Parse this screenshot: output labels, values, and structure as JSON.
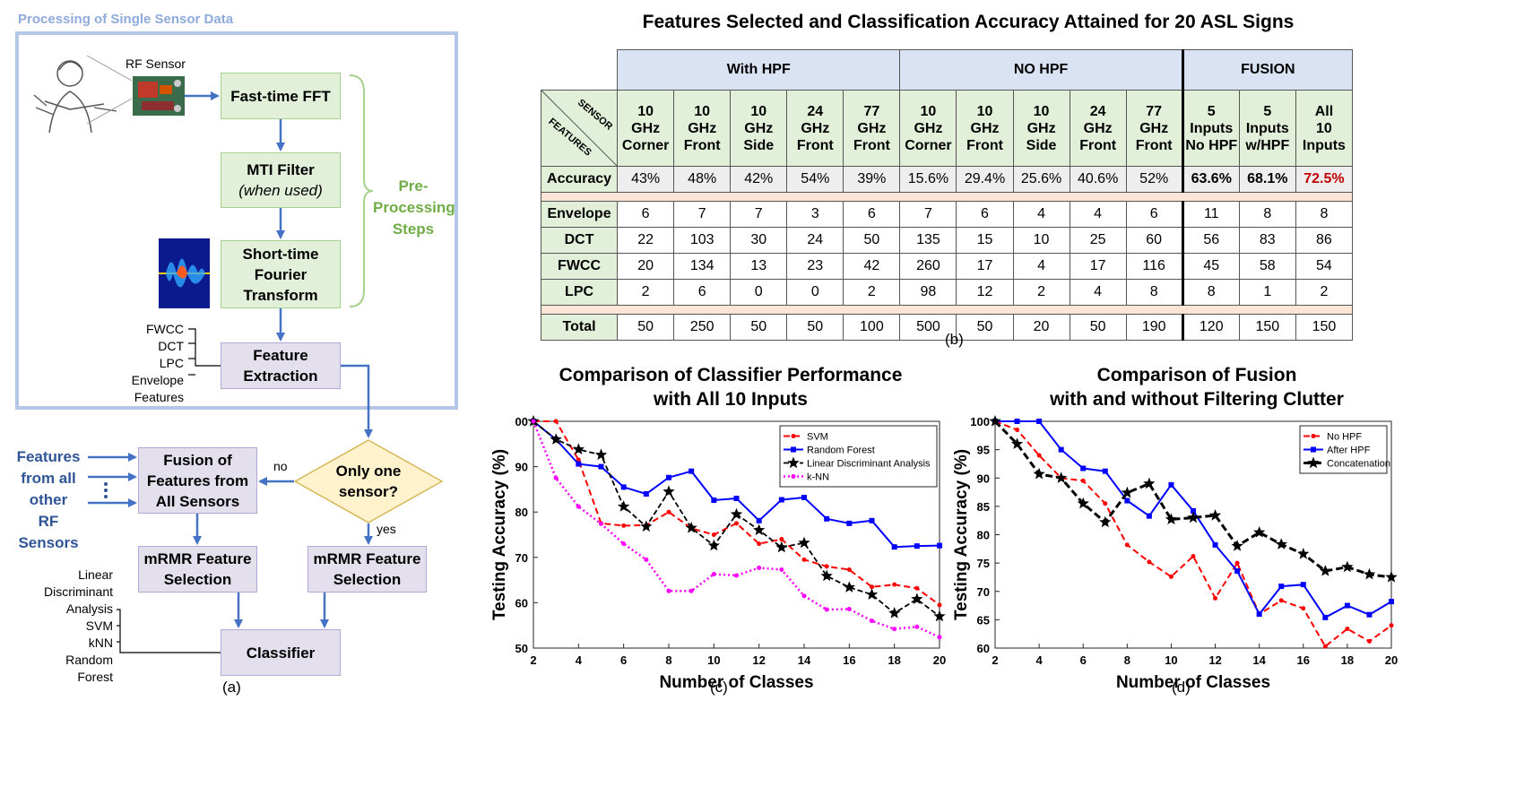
{
  "panel_a": {
    "section_title": "Processing of Single Sensor Data",
    "rf_sensor_label": "RF Sensor",
    "boxes": {
      "fft": "Fast-time FFT",
      "mti_line1": "MTI Filter",
      "mti_line2": "(when used)",
      "stft_line1": "Short-time",
      "stft_line2": "Fourier",
      "stft_line3": "Transform",
      "feature_extraction_line1": "Feature",
      "feature_extraction_line2": "Extraction",
      "fusion_line1": "Fusion of",
      "fusion_line2": "Features from",
      "fusion_line3": "All Sensors",
      "decision_line1": "Only one",
      "decision_line2": "sensor?",
      "mrmr_left_line1": "mRMR Feature",
      "mrmr_left_line2": "Selection",
      "mrmr_right_line1": "mRMR Feature",
      "mrmr_right_line2": "Selection",
      "classifier": "Classifier"
    },
    "preprocessing_line1": "Pre-",
    "preprocessing_line2": "Processing",
    "preprocessing_line3": "Steps",
    "feature_list": [
      "FWCC",
      "DCT",
      "LPC",
      "Envelope",
      "Features"
    ],
    "features_other_line1": "Features",
    "features_other_line2": "from all",
    "features_other_line3": "other",
    "features_other_line4": "RF Sensors",
    "no_label": "no",
    "yes_label": "yes",
    "classifier_list": [
      "Linear",
      "Discriminant",
      "Analysis",
      "SVM",
      "kNN",
      "Random",
      "Forest"
    ],
    "caption": "(a)"
  },
  "panel_b": {
    "title": "Features Selected and Classification Accuracy Attained for 20 ASL Signs",
    "groups": [
      "With HPF",
      "NO HPF",
      "FUSION"
    ],
    "corner_top": "SENSOR",
    "corner_bottom": "FEATURES",
    "columns": [
      [
        "10",
        "GHz",
        "Corner"
      ],
      [
        "10",
        "GHz",
        "Front"
      ],
      [
        "10",
        "GHz",
        "Side"
      ],
      [
        "24",
        "GHz",
        "Front"
      ],
      [
        "77",
        "GHz",
        "Front"
      ],
      [
        "10",
        "GHz",
        "Corner"
      ],
      [
        "10",
        "GHz",
        "Front"
      ],
      [
        "10",
        "GHz",
        "Side"
      ],
      [
        "24",
        "GHz",
        "Front"
      ],
      [
        "77",
        "GHz",
        "Front"
      ],
      [
        "5",
        "Inputs",
        "No HPF"
      ],
      [
        "5",
        "Inputs",
        "w/HPF"
      ],
      [
        "All",
        "10",
        "Inputs"
      ]
    ],
    "accuracy_label": "Accuracy",
    "accuracy": [
      "43%",
      "48%",
      "42%",
      "54%",
      "39%",
      "15.6%",
      "29.4%",
      "25.6%",
      "40.6%",
      "52%",
      "63.6%",
      "68.1%",
      "72.5%"
    ],
    "rows": [
      {
        "label": "Envelope",
        "values": [
          "6",
          "7",
          "7",
          "3",
          "6",
          "7",
          "6",
          "4",
          "4",
          "6",
          "11",
          "8",
          "8"
        ]
      },
      {
        "label": "DCT",
        "values": [
          "22",
          "103",
          "30",
          "24",
          "50",
          "135",
          "15",
          "10",
          "25",
          "60",
          "56",
          "83",
          "86"
        ]
      },
      {
        "label": "FWCC",
        "values": [
          "20",
          "134",
          "13",
          "23",
          "42",
          "260",
          "17",
          "4",
          "17",
          "116",
          "45",
          "58",
          "54"
        ]
      },
      {
        "label": "LPC",
        "values": [
          "2",
          "6",
          "0",
          "0",
          "2",
          "98",
          "12",
          "2",
          "4",
          "8",
          "8",
          "1",
          "2"
        ]
      }
    ],
    "total_label": "Total",
    "total": [
      "50",
      "250",
      "50",
      "50",
      "100",
      "500",
      "50",
      "20",
      "50",
      "190",
      "120",
      "150",
      "150"
    ],
    "caption": "(b)"
  },
  "chart_data": [
    {
      "type": "line",
      "title": "Comparison of Classifier Performance with All 10 Inputs",
      "title_line1": "Comparison of Classifier Performance",
      "title_line2": "with All 10 Inputs",
      "xlabel": "Number of Classes",
      "ylabel": "Testing Accuracy (%)",
      "xlim": [
        2,
        20
      ],
      "ylim": [
        50,
        100
      ],
      "x": [
        2,
        3,
        4,
        5,
        6,
        7,
        8,
        9,
        10,
        11,
        12,
        13,
        14,
        15,
        16,
        17,
        18,
        19,
        20
      ],
      "xticks": [
        "2",
        "4",
        "6",
        "8",
        "10",
        "12",
        "14",
        "16",
        "18",
        "20"
      ],
      "yticks": [
        "50",
        "60",
        "70",
        "80",
        "90",
        "00"
      ],
      "legend_position": "top-right",
      "caption": "(c)",
      "series": [
        {
          "name": "SVM",
          "color": "#ff0000",
          "values": [
            100,
            100,
            91.5,
            77.5,
            77,
            77.1,
            80,
            76.4,
            75,
            77.5,
            73,
            74,
            69.5,
            68,
            67.3,
            63.5,
            64,
            63.2,
            59.5
          ]
        },
        {
          "name": "Random Forest",
          "color": "#0000ff",
          "values": [
            100,
            96,
            90.6,
            90,
            85.5,
            84,
            87.6,
            89,
            82.6,
            83,
            78.1,
            82.7,
            83.2,
            78.5,
            77.5,
            78.1,
            72.3,
            72.5,
            72.6
          ]
        },
        {
          "name": "Linear Discriminant Analysis",
          "color": "#000000",
          "values": [
            100,
            96,
            93.8,
            92.6,
            81.2,
            76.8,
            84.5,
            76.5,
            72.6,
            79.5,
            76,
            72.2,
            73.2,
            65.9,
            63.4,
            61.8,
            57.7,
            60.8,
            57
          ]
        },
        {
          "name": "k-NN",
          "color": "#ff00ff",
          "values": [
            100,
            87.5,
            81.2,
            77.4,
            73,
            69.5,
            62.6,
            62.6,
            66.3,
            66,
            67.7,
            67.3,
            61.5,
            58.5,
            58.6,
            56,
            54.2,
            54.7,
            52.4
          ]
        }
      ]
    },
    {
      "type": "line",
      "title": "Comparison of Fusion with and without Filtering Clutter",
      "title_line1": "Comparison of Fusion",
      "title_line2": "with and without Filtering Clutter",
      "xlabel": "Number of Classes",
      "ylabel": "Testing Accuracy (%)",
      "xlim": [
        2,
        20
      ],
      "ylim": [
        60,
        100
      ],
      "x": [
        2,
        3,
        4,
        5,
        6,
        7,
        8,
        9,
        10,
        11,
        12,
        13,
        14,
        15,
        16,
        17,
        18,
        19,
        20
      ],
      "xticks": [
        "2",
        "4",
        "6",
        "8",
        "10",
        "12",
        "14",
        "16",
        "18",
        "20"
      ],
      "yticks": [
        "60",
        "65",
        "70",
        "75",
        "80",
        "85",
        "90",
        "95",
        "100"
      ],
      "legend_position": "top-right",
      "caption": "(d)",
      "series": [
        {
          "name": "No HPF",
          "color": "#ff0000",
          "values": [
            100,
            98.5,
            94,
            90,
            89.5,
            85.5,
            78.2,
            75.2,
            72.6,
            76.2,
            68.8,
            75,
            66,
            68.4,
            67,
            60.3,
            63.4,
            61.2,
            64
          ]
        },
        {
          "name": "After HPF",
          "color": "#0000ff",
          "values": [
            100,
            100,
            100,
            95,
            91.7,
            91.2,
            86,
            83.3,
            88.8,
            84.2,
            78.2,
            73.6,
            66,
            70.9,
            71.2,
            65.4,
            67.5,
            65.9,
            68.2
          ]
        },
        {
          "name": "Concatenation",
          "color": "#000000",
          "values": [
            100,
            96,
            90.7,
            90,
            85.5,
            82.2,
            87.4,
            89,
            82.7,
            83,
            83.4,
            78,
            80.4,
            78.3,
            76.6,
            73.6,
            74.3,
            73,
            72.5
          ]
        }
      ]
    }
  ]
}
